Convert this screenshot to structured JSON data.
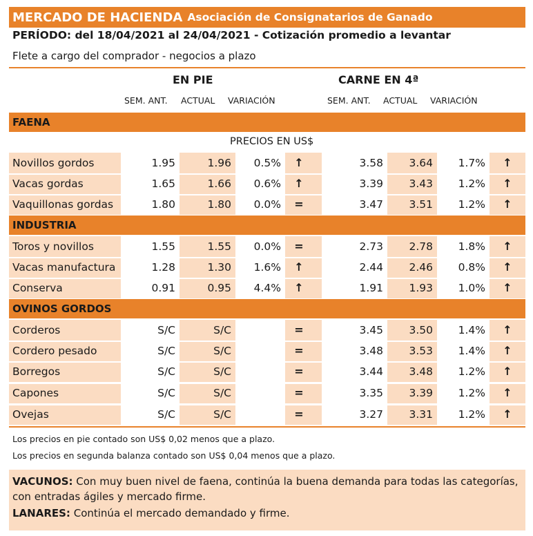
{
  "header": {
    "title": "MERCADO DE HACIENDA",
    "subtitle": "Asociación de Consignatarios de Ganado",
    "periodo": "PERÍODO: del 18/04/2021 al 24/04/2021 - Cotización promedio a levantar",
    "flete": "Flete a cargo del comprador - negocios a plazo"
  },
  "groups": {
    "en_pie": "EN PIE",
    "carne": "CARNE EN 4ª"
  },
  "columns": {
    "sem_ant": "SEM. ANT.",
    "actual": "ACTUAL",
    "variacion": "VARIACIÓN"
  },
  "precios_label": "PRECIOS EN US$",
  "colors": {
    "accent": "#e8822a",
    "row_fill": "#fbdcc2",
    "white": "#ffffff"
  },
  "sections": [
    {
      "name": "FAENA",
      "rows": [
        {
          "name": "Novillos gordos",
          "pie": [
            "1.95",
            "1.96",
            "0.5%",
            "↑"
          ],
          "carne": [
            "3.58",
            "3.64",
            "1.7%",
            "↑"
          ]
        },
        {
          "name": "Vacas gordas",
          "pie": [
            "1.65",
            "1.66",
            "0.6%",
            "↑"
          ],
          "carne": [
            "3.39",
            "3.43",
            "1.2%",
            "↑"
          ]
        },
        {
          "name": "Vaquillonas gordas",
          "pie": [
            "1.80",
            "1.80",
            "0.0%",
            "="
          ],
          "carne": [
            "3.47",
            "3.51",
            "1.2%",
            "↑"
          ]
        }
      ]
    },
    {
      "name": "INDUSTRIA",
      "rows": [
        {
          "name": "Toros y novillos",
          "pie": [
            "1.55",
            "1.55",
            "0.0%",
            "="
          ],
          "carne": [
            "2.73",
            "2.78",
            "1.8%",
            "↑"
          ]
        },
        {
          "name": "Vacas manufactura",
          "pie": [
            "1.28",
            "1.30",
            "1.6%",
            "↑"
          ],
          "carne": [
            "2.44",
            "2.46",
            "0.8%",
            "↑"
          ]
        },
        {
          "name": "Conserva",
          "pie": [
            "0.91",
            "0.95",
            "4.4%",
            "↑"
          ],
          "carne": [
            "1.91",
            "1.93",
            "1.0%",
            "↑"
          ]
        }
      ]
    },
    {
      "name": "OVINOS GORDOS",
      "rows": [
        {
          "name": "Corderos",
          "pie": [
            "S/C",
            "S/C",
            "",
            "="
          ],
          "carne": [
            "3.45",
            "3.50",
            "1.4%",
            "↑"
          ]
        },
        {
          "name": "Cordero pesado",
          "pie": [
            "S/C",
            "S/C",
            "",
            "="
          ],
          "carne": [
            "3.48",
            "3.53",
            "1.4%",
            "↑"
          ]
        },
        {
          "name": "Borregos",
          "pie": [
            "S/C",
            "S/C",
            "",
            "="
          ],
          "carne": [
            "3.44",
            "3.48",
            "1.2%",
            "↑"
          ]
        },
        {
          "name": "Capones",
          "pie": [
            "S/C",
            "S/C",
            "",
            "="
          ],
          "carne": [
            "3.35",
            "3.39",
            "1.2%",
            "↑"
          ]
        },
        {
          "name": "Ovejas",
          "pie": [
            "S/C",
            "S/C",
            "",
            "="
          ],
          "carne": [
            "3.27",
            "3.31",
            "1.2%",
            "↑"
          ]
        }
      ]
    }
  ],
  "notes": [
    "Los precios en pie contado son US$ 0,02 menos que a plazo.",
    "Los precios en segunda balanza contado son US$ 0,04 menos que a plazo."
  ],
  "comments": {
    "vacunos_label": "VACUNOS:",
    "vacunos_text_1": "Con muy buen nivel de faena, continúa la buena demanda para todas las categorías,",
    "vacunos_text_2": "con entradas ágiles y mercado firme.",
    "lanares_label": "LANARES:",
    "lanares_text": "Continúa el mercado demandado y firme."
  }
}
